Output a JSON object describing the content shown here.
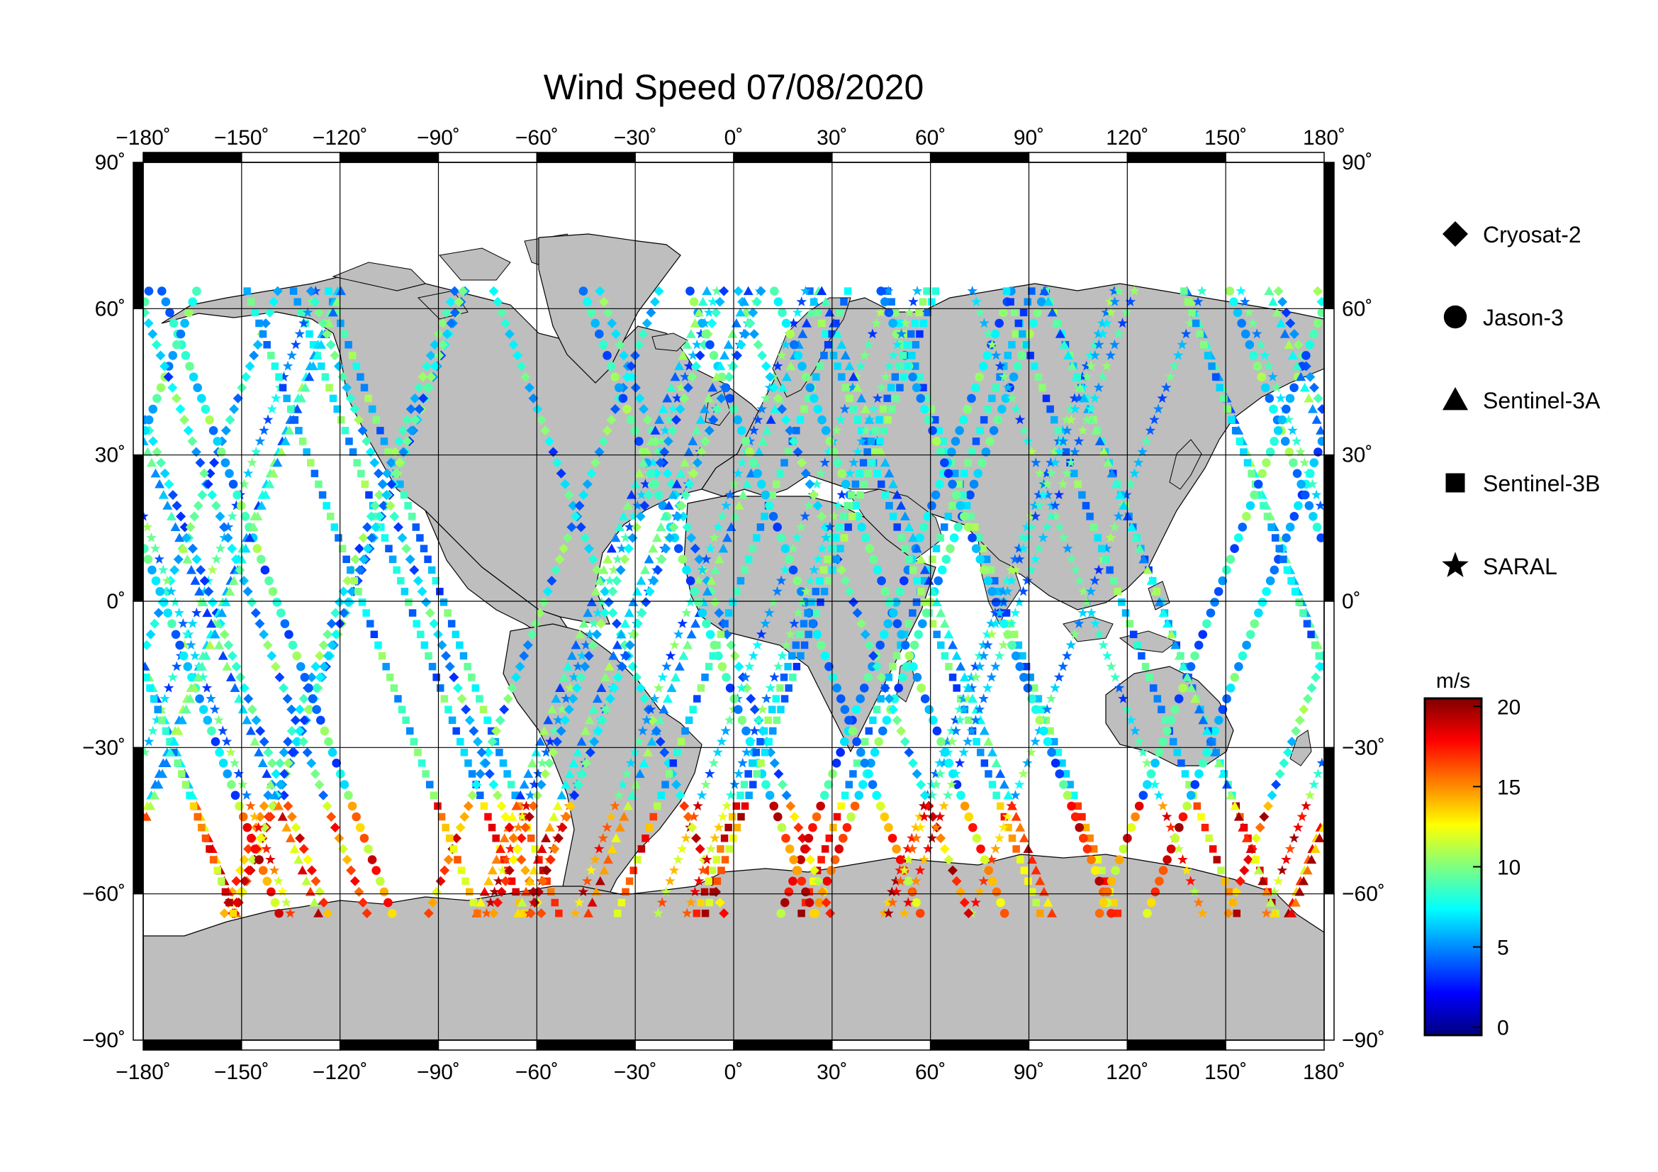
{
  "title": "Wind Speed 07/08/2020",
  "axes": {
    "lon_ticks": [
      "−180˚",
      "−150˚",
      "−120˚",
      "−90˚",
      "−60˚",
      "−30˚",
      "0˚",
      "30˚",
      "60˚",
      "90˚",
      "120˚",
      "150˚",
      "180˚"
    ],
    "lat_ticks": [
      "90˚",
      "60˚",
      "30˚",
      "0˚",
      "−30˚",
      "−60˚",
      "−90˚"
    ],
    "lon_values": [
      -180,
      -150,
      -120,
      -90,
      -60,
      -30,
      0,
      30,
      60,
      90,
      120,
      150,
      180
    ],
    "lat_values": [
      90,
      60,
      30,
      0,
      -30,
      -60,
      -90
    ],
    "lon_range": [
      -180,
      180
    ],
    "lat_range": [
      -90,
      90
    ],
    "grid": true
  },
  "legend": {
    "placement": "right",
    "items": [
      {
        "label": "Cryosat-2",
        "shape": "diamond"
      },
      {
        "label": "Jason-3",
        "shape": "circle"
      },
      {
        "label": "Sentinel-3A",
        "shape": "triangle"
      },
      {
        "label": "Sentinel-3B",
        "shape": "square"
      },
      {
        "label": "SARAL",
        "shape": "star"
      }
    ]
  },
  "colorbar": {
    "unit": "m/s",
    "ticks": [
      "20",
      "15",
      "10",
      "5",
      "0"
    ],
    "tick_values": [
      20,
      15,
      10,
      5,
      0
    ],
    "range": [
      -0.5,
      20.5
    ],
    "colors": [
      "#00007f",
      "#0000ff",
      "#007fff",
      "#00ffff",
      "#7fff7f",
      "#ffff00",
      "#ff7f00",
      "#ff0000",
      "#7f0000"
    ]
  },
  "colors": {
    "land": "#bebebe",
    "ocean": "#ffffff",
    "grid": "#000000"
  }
}
